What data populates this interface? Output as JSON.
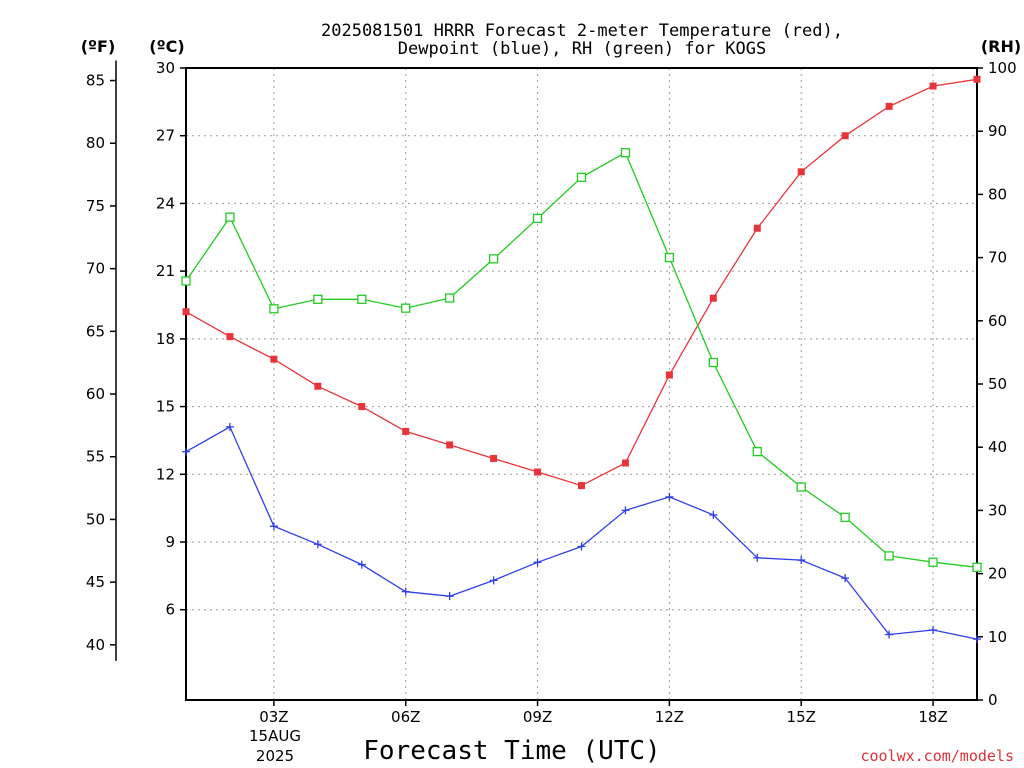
{
  "chart_data": {
    "type": "line",
    "title_lines": [
      "2025081501 HRRR Forecast 2-meter Temperature (red),",
      "Dewpoint (blue), RH (green) for KOGS"
    ],
    "xlabel": "Forecast Time (UTC)",
    "date_labels": [
      "15AUG",
      "2025"
    ],
    "credit": "coolwx.com/models",
    "x": [
      1,
      2,
      3,
      4,
      5,
      6,
      7,
      8,
      9,
      10,
      11,
      12,
      13,
      14,
      15,
      16,
      17,
      18,
      19
    ],
    "x_ticks": [
      {
        "x": 3,
        "label": "03Z"
      },
      {
        "x": 6,
        "label": "06Z"
      },
      {
        "x": 9,
        "label": "09Z"
      },
      {
        "x": 12,
        "label": "12Z"
      },
      {
        "x": 15,
        "label": "15Z"
      },
      {
        "x": 18,
        "label": "18Z"
      }
    ],
    "xlim": [
      1,
      19
    ],
    "y_left_c": {
      "unit": "(ºC)",
      "lim": [
        2,
        30
      ],
      "ticks": [
        6,
        9,
        12,
        15,
        18,
        21,
        24,
        27,
        30
      ]
    },
    "y_left_f": {
      "unit": "(ºF)",
      "ticks": [
        40,
        45,
        50,
        55,
        60,
        65,
        70,
        75,
        80,
        85
      ]
    },
    "y_right_rh": {
      "unit": "(RH)",
      "lim": [
        0,
        100
      ],
      "ticks": [
        0,
        10,
        20,
        30,
        40,
        50,
        60,
        70,
        80,
        90,
        100
      ]
    },
    "grid": true,
    "series": [
      {
        "name": "Temperature",
        "axis": "c",
        "color": "#e8353a",
        "marker": "filled-square",
        "values": [
          19.2,
          18.1,
          17.1,
          15.9,
          15.0,
          13.9,
          13.3,
          12.7,
          12.1,
          11.5,
          12.5,
          16.4,
          19.8,
          22.9,
          25.4,
          27.0,
          28.3,
          29.2,
          29.5
        ]
      },
      {
        "name": "Dewpoint",
        "axis": "c",
        "color": "#2f3fe8",
        "marker": "plus",
        "values": [
          13.0,
          14.1,
          9.7,
          8.9,
          8.0,
          6.8,
          6.6,
          7.3,
          8.1,
          8.8,
          10.4,
          11.0,
          10.2,
          8.3,
          8.2,
          7.4,
          4.9,
          5.1,
          4.7
        ]
      },
      {
        "name": "RH",
        "axis": "rh",
        "color": "#22cc22",
        "marker": "open-square",
        "values": [
          66.3,
          76.4,
          61.9,
          63.4,
          63.4,
          62.0,
          63.6,
          69.8,
          76.2,
          82.7,
          86.6,
          70.0,
          53.4,
          39.3,
          33.7,
          28.9,
          22.8,
          21.8,
          21.0
        ]
      }
    ]
  }
}
